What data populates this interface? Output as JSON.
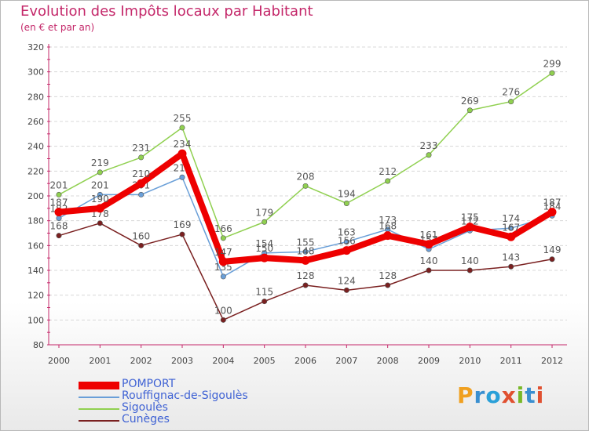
{
  "title": "Evolution des Impôts locaux par Habitant",
  "subtitle": "(en € et par an)",
  "brand": {
    "text": "Proxiti",
    "letters": [
      "P",
      "r",
      "o",
      "x",
      "i",
      "t",
      "i"
    ],
    "colors": [
      "#f0a020",
      "#3a8fd0",
      "#2aa0d8",
      "#e05030",
      "#78b828",
      "#3a8fd0",
      "#e05030"
    ]
  },
  "chart_data": {
    "type": "line",
    "title": "Evolution des Impôts locaux par Habitant",
    "subtitle": "(en € et par an)",
    "xlabel": "",
    "ylabel": "",
    "ylim": [
      80,
      320
    ],
    "yticks": [
      80,
      100,
      120,
      140,
      160,
      180,
      200,
      220,
      240,
      260,
      280,
      300,
      320
    ],
    "x": [
      "2000",
      "2001",
      "2002",
      "2003",
      "2004",
      "2005",
      "2006",
      "2007",
      "2008",
      "2009",
      "2010",
      "2011",
      "2012"
    ],
    "grid": "horizontal",
    "legend_position": "bottom-left",
    "series": [
      {
        "name": "POMPORT",
        "color": "#ee0000",
        "values": [
          187,
          190,
          210,
          234,
          147,
          150,
          148,
          156,
          168,
          161,
          175,
          167,
          187
        ],
        "labels": [
          "187",
          "190",
          "210",
          "234",
          "147",
          "150",
          "148",
          "156",
          "168",
          "161",
          "175",
          "167",
          "187"
        ]
      },
      {
        "name": "Rouffignac-de-Sigoulès",
        "color": "#6a9fd8",
        "values": [
          182,
          201,
          201,
          215,
          135,
          154,
          155,
          163,
          173,
          157,
          172,
          174,
          184
        ],
        "labels": [
          "182",
          "201",
          "201",
          "215",
          "135",
          "154",
          "155",
          "163",
          "173",
          "157",
          "172",
          "174",
          "184"
        ]
      },
      {
        "name": "Sigoulès",
        "color": "#90d050",
        "values": [
          201,
          219,
          231,
          255,
          166,
          179,
          208,
          194,
          212,
          233,
          269,
          276,
          299
        ],
        "labels": [
          "201",
          "219",
          "231",
          "255",
          "166",
          "179",
          "208",
          "194",
          "212",
          "233",
          "269",
          "276",
          "299"
        ]
      },
      {
        "name": "Cunèges",
        "color": "#7a2020",
        "values": [
          168,
          178,
          160,
          169,
          100,
          115,
          128,
          124,
          128,
          140,
          140,
          143,
          149
        ],
        "labels": [
          "168",
          "178",
          "160",
          "169",
          "100",
          "115",
          "128",
          "124",
          "128",
          "140",
          "140",
          "143",
          "149"
        ]
      }
    ]
  }
}
